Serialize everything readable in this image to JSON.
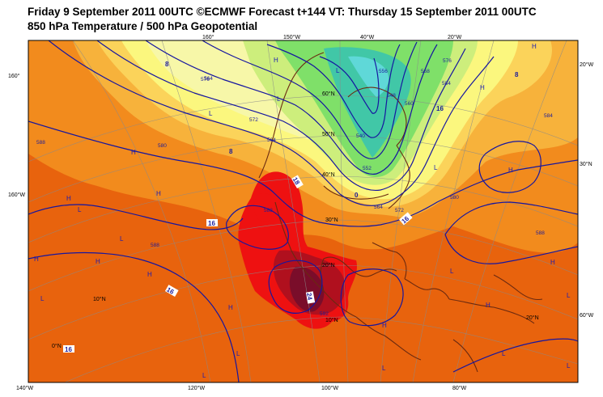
{
  "header": {
    "line1": "Friday 9 September 2011 00UTC ©ECMWF Forecast t+144 VT: Thursday 15 September 2011 00UTC",
    "line2": "850 hPa Temperature / 500 hPa Geopotential"
  },
  "colors": {
    "deep_orange": "#e8630d",
    "orange": "#f28b1d",
    "light_orange": "#f7b23b",
    "yellow_orange": "#fbd35a",
    "yellow": "#fbf77e",
    "pale_yellow": "#f7f7a8",
    "lime": "#cdee7c",
    "green": "#7fe069",
    "teal": "#41c7a7",
    "cyan": "#5fd8d8",
    "red": "#ee1111",
    "dark_red": "#b0101e",
    "maroon": "#7a0d2a",
    "contour_blue": "#1616a0",
    "coast_brown": "#6b2a10"
  },
  "longitude_labels": [
    "160°",
    "150°W",
    "40°W",
    "20°W",
    "20°W",
    "160°W",
    "140°W",
    "120°W",
    "100°W",
    "80°W",
    "60°W"
  ],
  "latitude_labels": [
    "60°N",
    "50°N",
    "40°N",
    "30°N",
    "20°N",
    "10°N",
    "0°N",
    "10°N",
    "20°N",
    "30°N",
    "40°N",
    "50°N"
  ],
  "high_low_labels": [
    "H",
    "L"
  ],
  "temperature_labels": [
    "16",
    "16",
    "16",
    "16",
    "18",
    "24",
    "8",
    "8",
    "0",
    "8",
    "16"
  ],
  "geopotential_labels": [
    "588",
    "588",
    "580",
    "576",
    "572",
    "564",
    "556",
    "548",
    "540",
    "552",
    "568",
    "576",
    "584",
    "588",
    "564",
    "572",
    "580",
    "588",
    "592",
    "564",
    "560",
    "584"
  ]
}
